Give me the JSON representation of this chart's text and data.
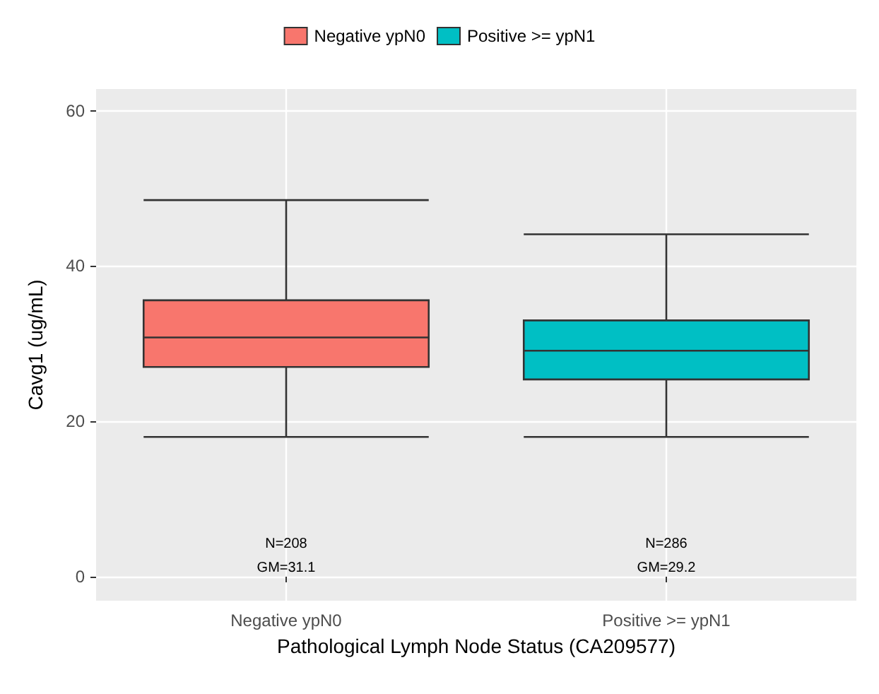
{
  "chart_data": {
    "type": "box",
    "xlabel": "Pathological Lymph Node Status (CA209577)",
    "ylabel": "Cavg1 (ug/mL)",
    "categories": [
      "Negative ypN0",
      "Positive >= ypN1"
    ],
    "series": [
      {
        "name": "Negative ypN0",
        "color": "#f8766d",
        "boxes": [
          {
            "low": 18,
            "q1": 27,
            "median": 30.8,
            "q3": 35.6,
            "high": 48.5
          },
          null
        ]
      },
      {
        "name": "Positive >= ypN1",
        "color": "#00bfc4",
        "boxes": [
          null,
          {
            "low": 18,
            "q1": 25.4,
            "median": 29.1,
            "q3": 33,
            "high": 44.1
          }
        ]
      }
    ],
    "ylim": [
      -3.1,
      62.8
    ],
    "yticks": [
      0,
      20,
      40,
      60
    ],
    "grid": true,
    "legend": "top",
    "annotations": [
      "N=208",
      "GM=31.1",
      "N=286",
      "GM=29.2"
    ]
  }
}
